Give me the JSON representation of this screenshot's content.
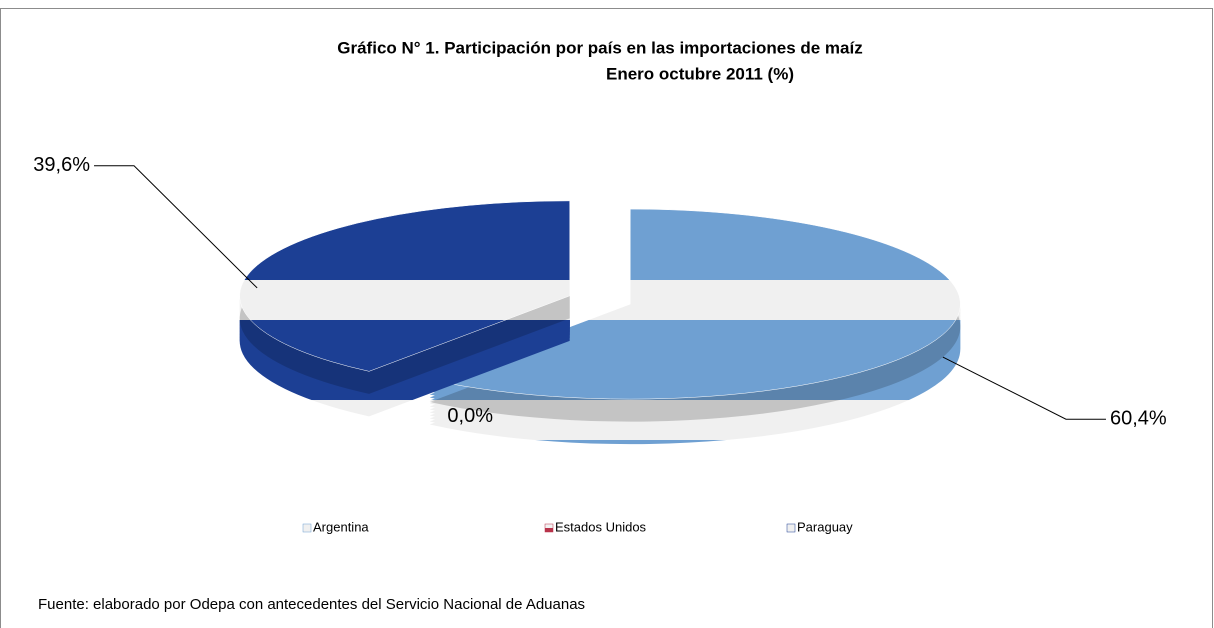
{
  "chart_data": {
    "type": "pie",
    "title": "Gráfico N° 1. Participación por país en las importaciones de maíz",
    "subtitle": "Enero octubre  2011  (%)",
    "categories": [
      "Argentina",
      "Estados Unidos",
      "Paraguay"
    ],
    "values": [
      60.4,
      0.0,
      39.6
    ],
    "value_labels": [
      "60,4%",
      "0,0%",
      "39,6%"
    ],
    "colors": [
      "#6fa0d2",
      "#b8334a",
      "#1c3f94"
    ],
    "legend": "bottom",
    "source": "Fuente: elaborado por Odepa con antecedentes del Servicio Nacional de Aduanas"
  }
}
